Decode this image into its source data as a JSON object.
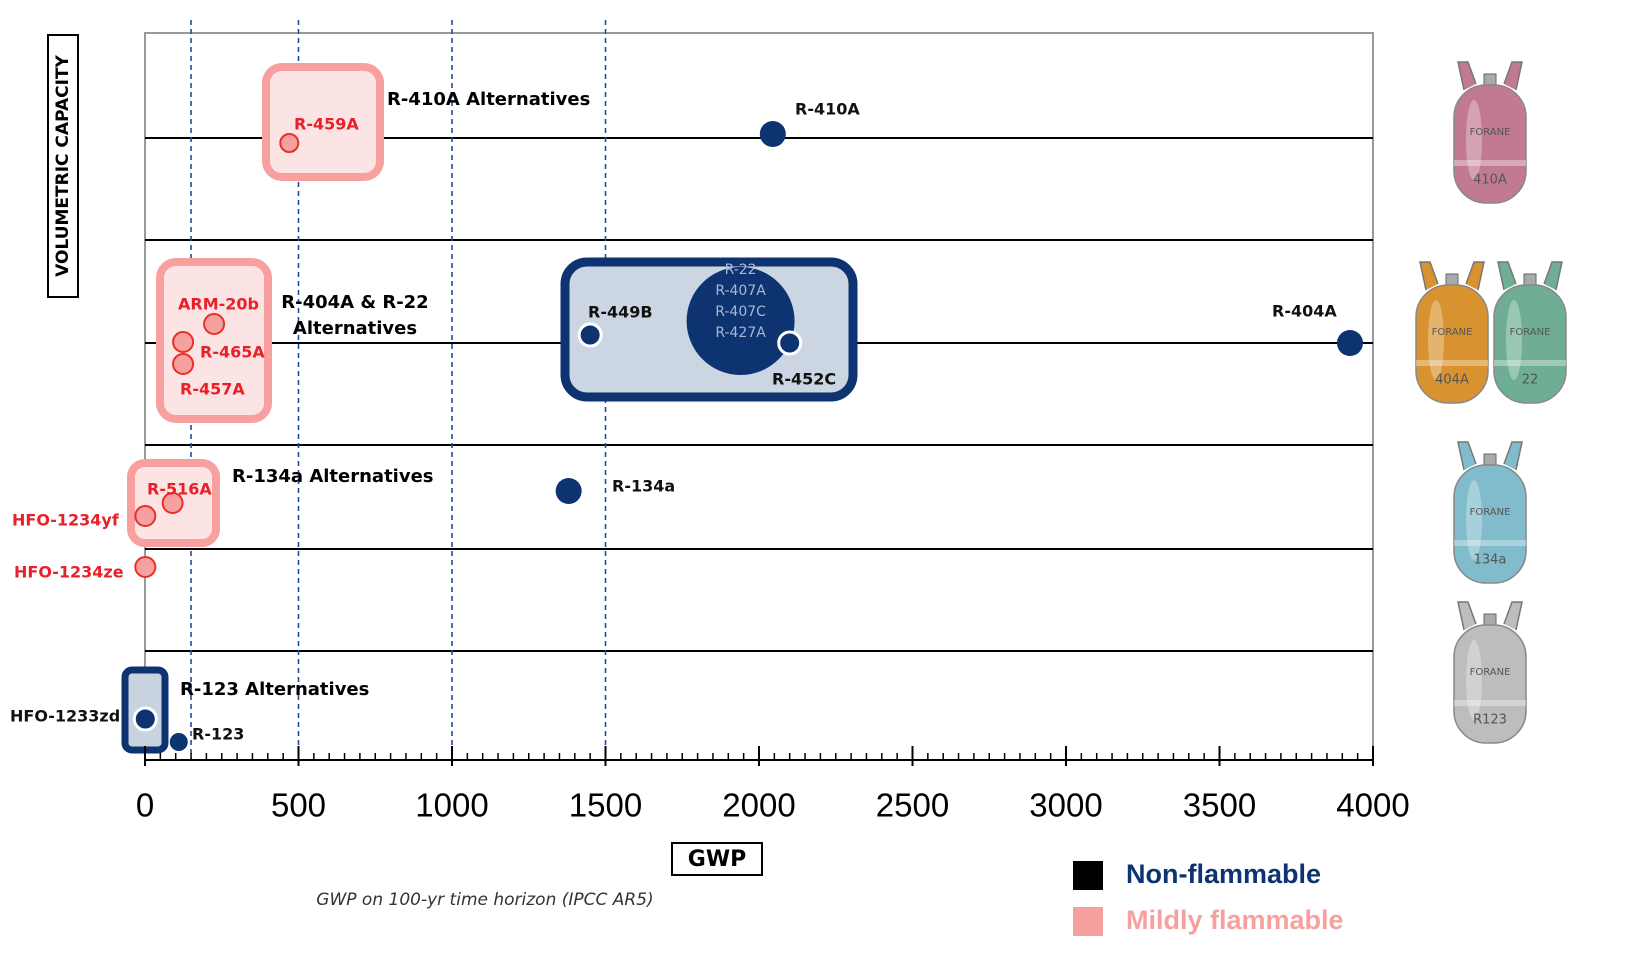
{
  "chart_data": {
    "type": "scatter",
    "y_label": "VOLUMETRIC CAPACITY",
    "x_label": "GWP",
    "note": "GWP on 100-yr time horizon (IPCC AR5)",
    "xlim": [
      0,
      4000
    ],
    "xticks": [
      0,
      500,
      1000,
      1500,
      2000,
      2500,
      3000,
      3500,
      4000
    ],
    "x_minor_tick_interval": 50,
    "reference_lines": [
      150,
      500,
      1000,
      1500
    ],
    "series": [
      {
        "name": "Non-flammable",
        "color": "#0d3371",
        "labels": [
          "R-410A",
          "R-449B",
          "R-452C",
          "R-404A",
          "R-134a",
          "HFO-1233zd",
          "R-123"
        ],
        "values": [
          2045,
          1450,
          2100,
          3925,
          1380,
          1,
          110
        ]
      },
      {
        "name": "Mildly flammable",
        "color": "#f7a0a0",
        "labels": [
          "R-459A",
          "ARM-20b",
          "R-465A",
          "R-457A",
          "R-516A",
          "HFO-1234yf",
          "HFO-1234ze"
        ],
        "values": [
          470,
          225,
          124,
          124,
          90,
          1,
          1
        ]
      }
    ],
    "cluster": {
      "labels": [
        "R-22",
        "R-407A",
        "R-407C",
        "R-427A"
      ],
      "value": 1940
    },
    "groups": [
      {
        "label": [
          "R-410A Alternatives"
        ]
      },
      {
        "label": [
          "R-404A & R-22",
          "Alternatives"
        ]
      },
      {
        "label": [
          "R-134a Alternatives"
        ]
      },
      {
        "label": [
          "R-123 Alternatives"
        ]
      }
    ],
    "cylinders": [
      {
        "brand": "FORANE",
        "label": "410A",
        "color": "#c27a90"
      },
      {
        "brand": "FORANE",
        "label": "404A",
        "color": "#d8922f"
      },
      {
        "brand": "FORANE",
        "label": "22",
        "color": "#6fae94"
      },
      {
        "brand": "FORANE",
        "label": "134a",
        "color": "#80bccb"
      },
      {
        "brand": "FORANE",
        "label": "R123",
        "color": "#bdbdbd"
      }
    ]
  }
}
